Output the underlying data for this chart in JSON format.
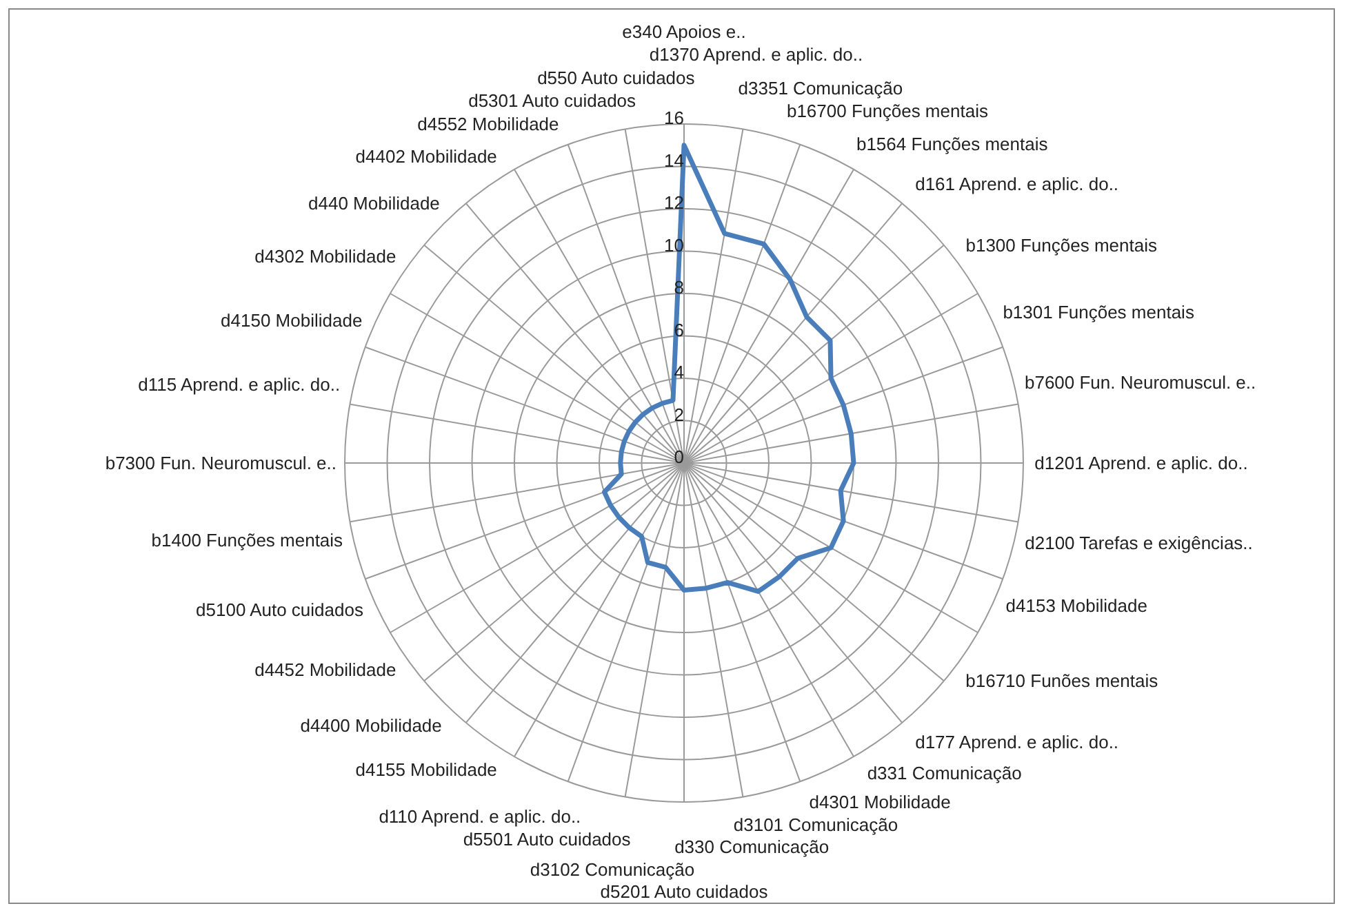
{
  "chart_data": {
    "type": "radar",
    "categories": [
      "e340 Apoios e..",
      "d1370 Aprend. e  aplic. do..",
      "d3351 Comunicação",
      "b16700 Funções mentais",
      "b1564 Funções mentais",
      "d161 Aprend. e  aplic. do..",
      "b1300 Funções mentais",
      "b1301 Funções mentais",
      "b7600 Fun. Neuromuscul. e..",
      "d1201 Aprend. e  aplic. do..",
      "d2100 Tarefas e exigências..",
      "d4153 Mobilidade",
      "b16710 Funões mentais",
      "d177 Aprend. e  aplic. do..",
      "d331 Comunicação",
      "d4301 Mobilidade",
      "d3101 Comunicação",
      "d330 Comunicação",
      "d5201 Auto cuidados",
      "d3102 Comunicação",
      "d5501 Auto cuidados",
      "d110 Aprend. e  aplic. do..",
      "d4155 Mobilidade",
      "d4400 Mobilidade",
      "d4452 Mobilidade",
      "d5100 Auto cuidados",
      "b1400 Funções mentais",
      "b7300 Fun. Neuromuscul. e..",
      "d115 Aprend. e  aplic. do..",
      "d4150 Mobilidade",
      "d4302 Mobilidade",
      "d440 Mobilidade",
      "d4402 Mobilidade",
      "d4552 Mobilidade",
      "d5301 Auto cuidados",
      "d550 Auto cuidados"
    ],
    "series": [
      {
        "color": "#4a7ebb",
        "values": [
          15,
          11,
          11,
          10,
          9,
          9,
          8,
          8,
          8,
          8,
          7.5,
          8,
          8,
          7,
          7,
          7,
          6,
          6,
          6,
          5,
          5,
          4,
          4,
          4,
          4,
          4,
          3,
          3,
          3,
          3,
          3,
          3,
          3,
          3,
          3,
          3
        ]
      }
    ],
    "ylim": [
      0,
      16
    ],
    "yticks": [
      0,
      2,
      4,
      6,
      8,
      10,
      12,
      14,
      16
    ],
    "grid": true,
    "legend": false
  }
}
